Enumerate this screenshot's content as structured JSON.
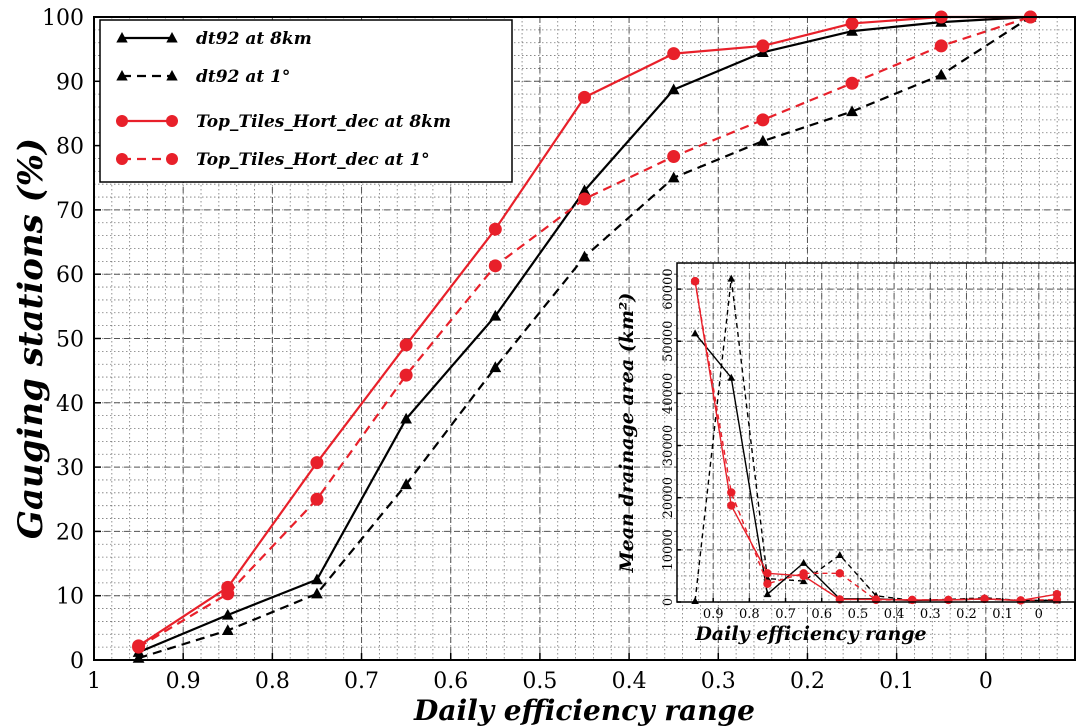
{
  "chart_data": [
    {
      "type": "line",
      "xlabel": "Daily efficiency range",
      "ylabel": "Gauging stations (%)",
      "xlim": [
        1,
        -0.1
      ],
      "ylim": [
        0,
        100
      ],
      "x_ticks": [
        "1",
        "0.9",
        "0.8",
        "0.7",
        "0.6",
        "0.5",
        "0.4",
        "0.3",
        "0.2",
        "0.1",
        "0"
      ],
      "y_ticks": [
        "0",
        "10",
        "20",
        "30",
        "40",
        "50",
        "60",
        "70",
        "80",
        "90",
        "100"
      ],
      "grid": true,
      "legend_position": "top-left",
      "x": [
        0.95,
        0.85,
        0.75,
        0.65,
        0.55,
        0.45,
        0.35,
        0.25,
        0.15,
        0.05,
        -0.05
      ],
      "series": [
        {
          "name": "dt92 at 8km",
          "color": "#000000",
          "dashed": false,
          "marker": "triangle",
          "values": [
            1.2,
            7,
            12.5,
            37.5,
            53.5,
            73,
            88.7,
            94.5,
            97.8,
            99.2,
            100
          ]
        },
        {
          "name": "dt92 at 1°",
          "color": "#000000",
          "dashed": true,
          "marker": "triangle",
          "values": [
            0.3,
            4.6,
            10.3,
            27.3,
            45.5,
            62.7,
            75,
            80.7,
            85.3,
            91,
            100
          ]
        },
        {
          "name": "Top_Tiles_Hort_dec at 8km",
          "color": "#e8202a",
          "dashed": false,
          "marker": "circle",
          "values": [
            2.2,
            11.3,
            30.7,
            49,
            67,
            87.5,
            94.3,
            95.5,
            99,
            100,
            100
          ]
        },
        {
          "name": "Top_Tiles_Hort_dec at 1°",
          "color": "#e8202a",
          "dashed": true,
          "marker": "circle",
          "values": [
            2,
            10.3,
            25,
            44.3,
            61.3,
            71.7,
            78.3,
            84,
            89.7,
            95.5,
            100
          ]
        }
      ]
    },
    {
      "type": "line",
      "xlabel": "Daily efficiency range",
      "ylabel": "Mean drainage area (km²)",
      "xlim": [
        1,
        -0.1
      ],
      "ylim": [
        0,
        65000
      ],
      "x_ticks": [
        "0.9",
        "0.8",
        "0.7",
        "0.6",
        "0.5",
        "0.4",
        "0.3",
        "0.2",
        "0.1",
        "0"
      ],
      "y_ticks": [
        "0",
        "10000",
        "20000",
        "30000",
        "40000",
        "50000",
        "60000"
      ],
      "grid": true,
      "x": [
        0.95,
        0.85,
        0.75,
        0.65,
        0.55,
        0.45,
        0.35,
        0.25,
        0.15,
        0.05,
        -0.05
      ],
      "series": [
        {
          "name": "dt92 at 8km",
          "color": "#000000",
          "dashed": false,
          "marker": "triangle",
          "values": [
            51500,
            43000,
            1500,
            7500,
            600,
            600,
            300,
            400,
            600,
            300,
            300
          ]
        },
        {
          "name": "dt92 at 1°",
          "color": "#000000",
          "dashed": true,
          "marker": "triangle",
          "values": [
            200,
            62000,
            4500,
            4000,
            9000,
            1200,
            300,
            500,
            800,
            300,
            300
          ]
        },
        {
          "name": "Top_Tiles_Hort_dec at 8km",
          "color": "#e8202a",
          "dashed": false,
          "marker": "circle",
          "values": [
            61500,
            18500,
            5500,
            5000,
            500,
            500,
            400,
            400,
            600,
            300,
            1500
          ]
        },
        {
          "name": "Top_Tiles_Hort_dec at 1°",
          "color": "#e8202a",
          "dashed": true,
          "marker": "circle",
          "values": [
            61500,
            21000,
            3500,
            5500,
            5500,
            400,
            400,
            400,
            600,
            300,
            500
          ]
        }
      ]
    }
  ]
}
